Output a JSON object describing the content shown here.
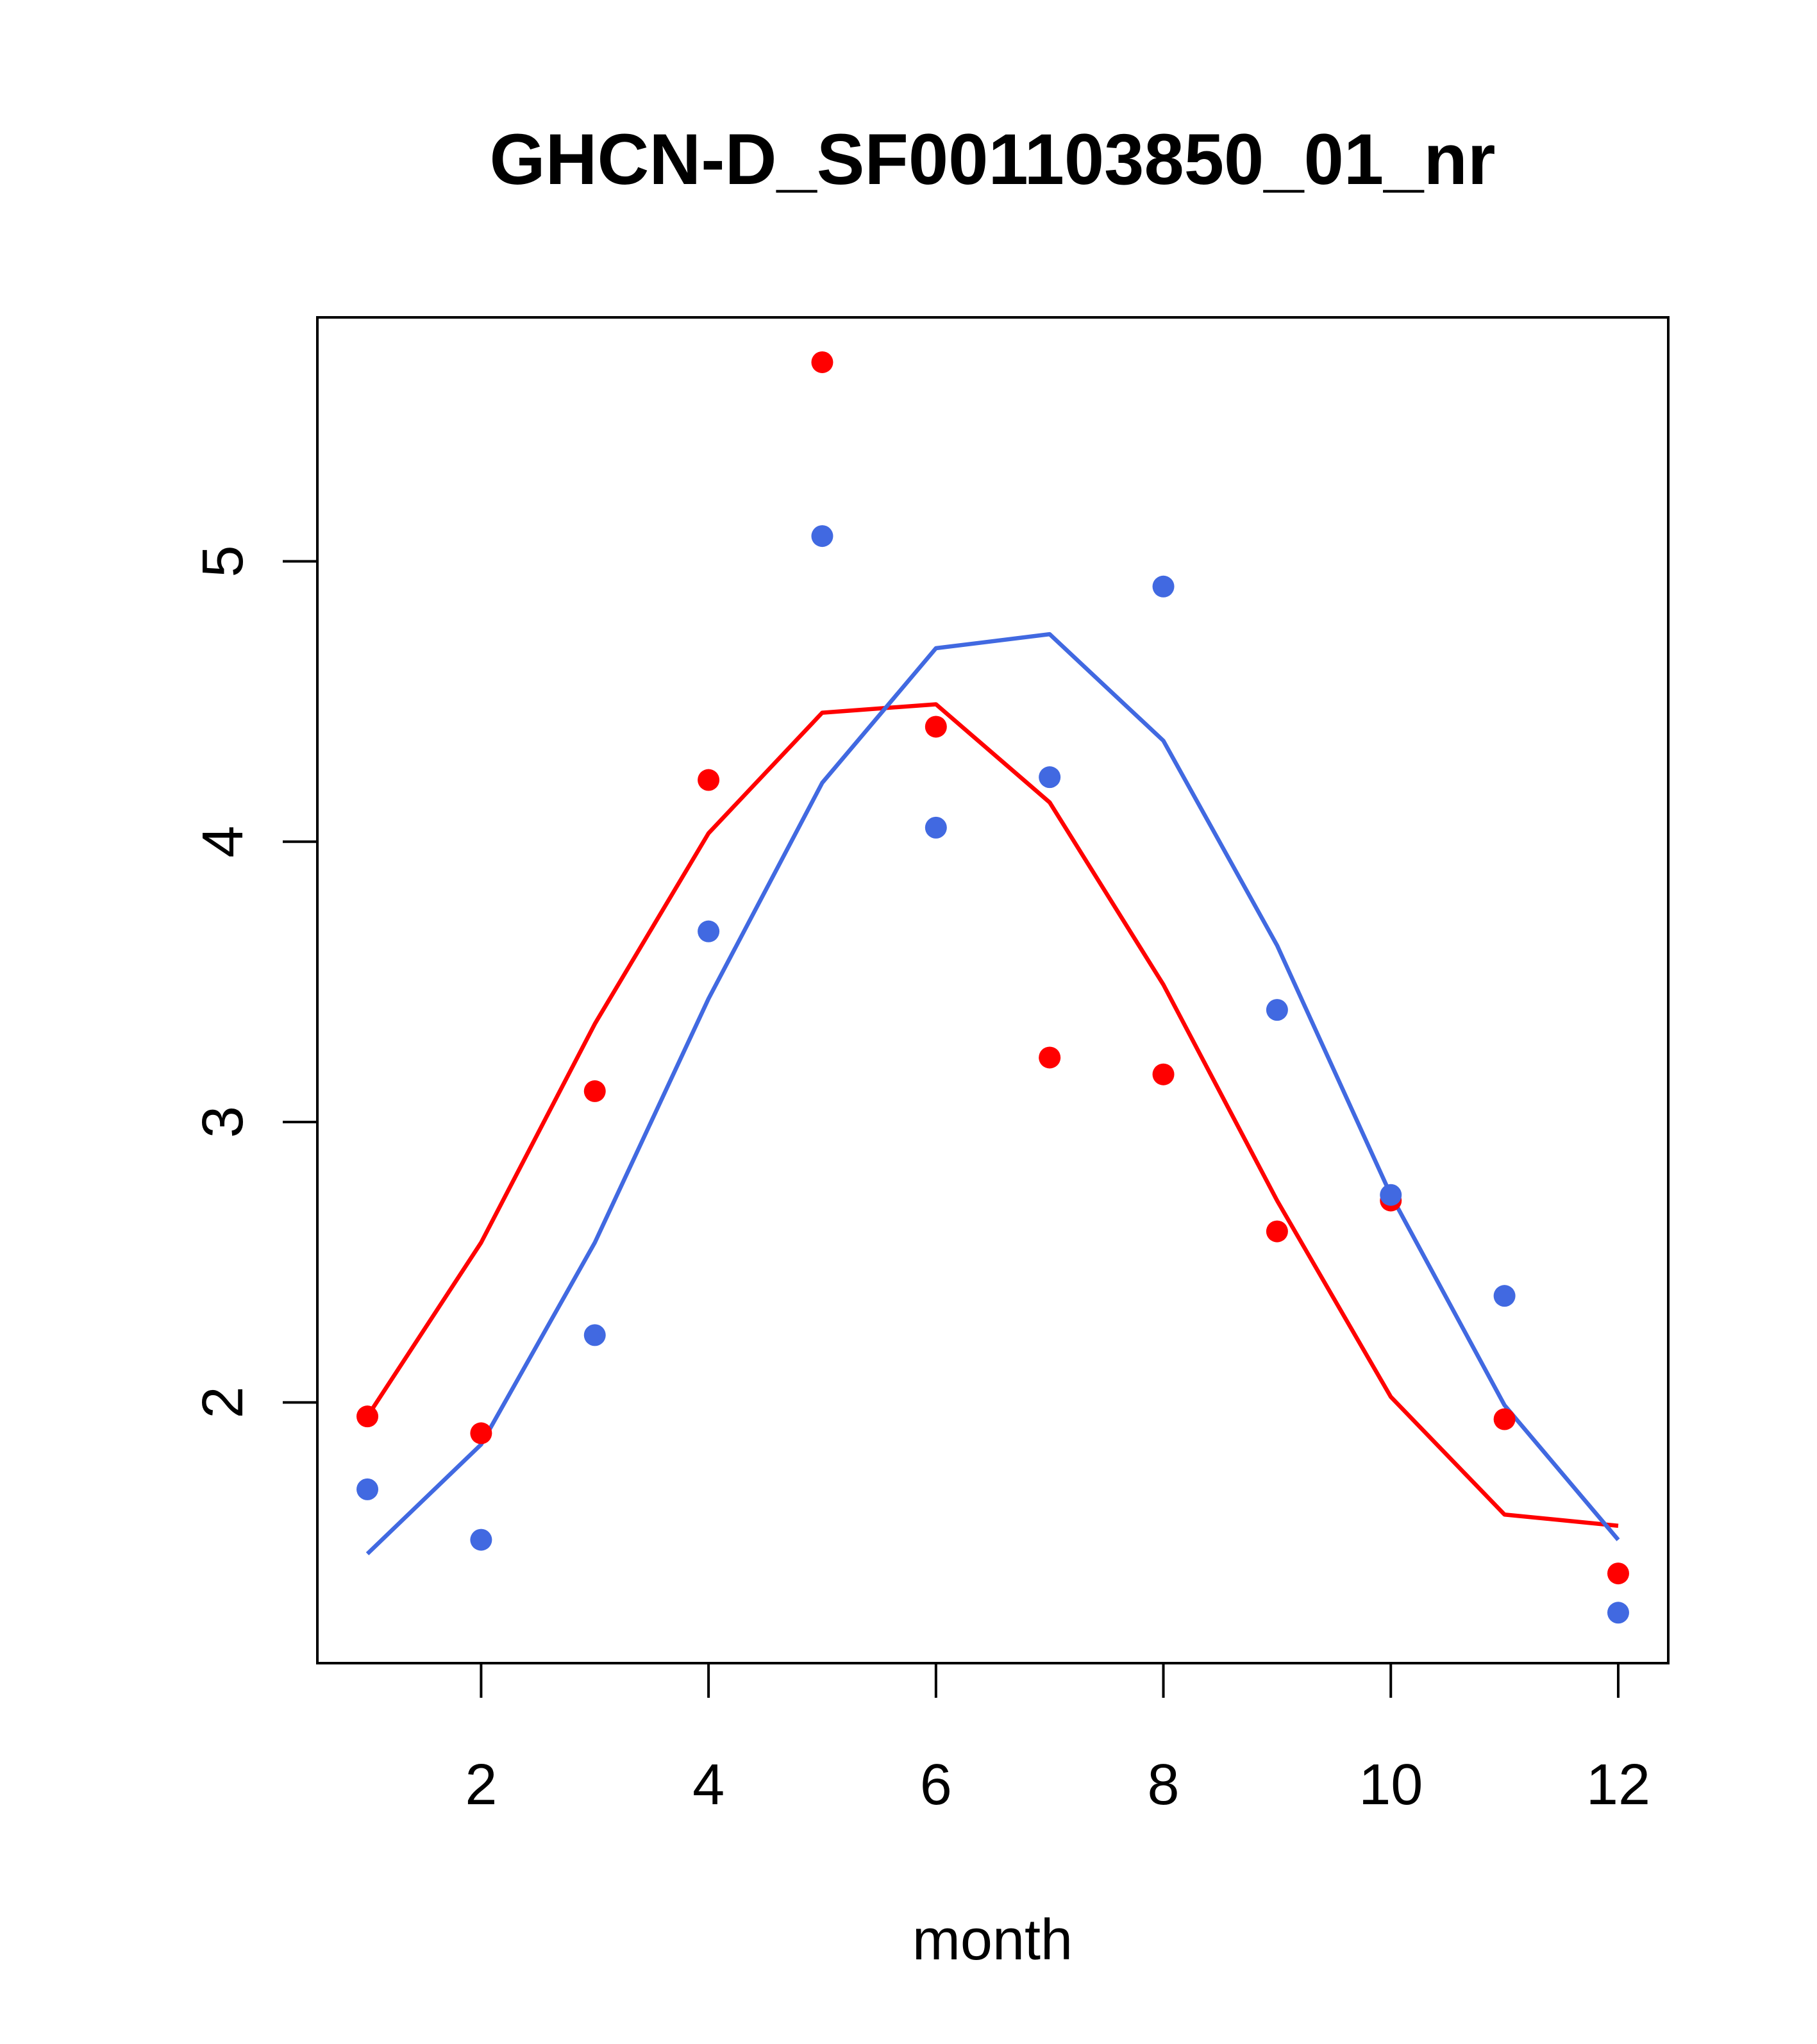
{
  "chart_data": {
    "type": "scatter",
    "title": "GHCN-D_SF001103850_01_nr",
    "xlabel": "month",
    "ylabel": "",
    "xlim": [
      0.56,
      12.44
    ],
    "ylim": [
      1.07,
      5.87
    ],
    "xticks": [
      2,
      4,
      6,
      8,
      10,
      12
    ],
    "yticks": [
      2,
      3,
      4,
      5
    ],
    "grid": false,
    "series": [
      {
        "name": "red points",
        "kind": "points",
        "color": "#ff0000",
        "x": [
          1,
          2,
          3,
          4,
          5,
          6,
          7,
          8,
          9,
          10,
          11,
          12
        ],
        "y": [
          1.95,
          1.89,
          3.11,
          4.22,
          5.71,
          4.41,
          3.23,
          3.17,
          2.61,
          2.72,
          1.94,
          1.39
        ]
      },
      {
        "name": "blue points",
        "kind": "points",
        "color": "#4169e1",
        "x": [
          1,
          2,
          3,
          4,
          5,
          6,
          7,
          8,
          9,
          10,
          11,
          12
        ],
        "y": [
          1.69,
          1.51,
          2.24,
          3.68,
          5.09,
          4.05,
          4.23,
          4.91,
          3.4,
          2.74,
          2.38,
          1.25
        ]
      },
      {
        "name": "red line",
        "kind": "line",
        "color": "#ff0000",
        "x": [
          1,
          2,
          3,
          4,
          5,
          6,
          7,
          8,
          9,
          10,
          11,
          12
        ],
        "y": [
          1.95,
          2.57,
          3.35,
          4.03,
          4.46,
          4.49,
          4.14,
          3.49,
          2.72,
          2.02,
          1.6,
          1.56
        ]
      },
      {
        "name": "blue line",
        "kind": "line",
        "color": "#4169e1",
        "x": [
          1,
          2,
          3,
          4,
          5,
          6,
          7,
          8,
          9,
          10,
          11,
          12
        ],
        "y": [
          1.46,
          1.85,
          2.57,
          3.44,
          4.21,
          4.69,
          4.74,
          4.36,
          3.63,
          2.74,
          1.99,
          1.51
        ]
      }
    ]
  }
}
